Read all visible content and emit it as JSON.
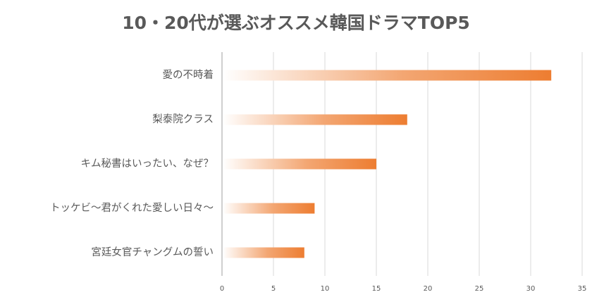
{
  "chart_data": {
    "type": "bar",
    "orientation": "horizontal",
    "title": "10・20代が選ぶオススメ韓国ドラマTOP5",
    "categories": [
      "愛の不時着",
      "梨泰院クラス",
      "キム秘書はいったい、なぜ？",
      "トッケビ〜君がくれた愛しい日々〜",
      "宮廷女官チャングムの誓い"
    ],
    "values": [
      32,
      18,
      15,
      9,
      8
    ],
    "xlim": [
      0,
      35
    ],
    "xticks": [
      0,
      5,
      10,
      15,
      20,
      25,
      30,
      35
    ],
    "xlabel": "",
    "ylabel": "",
    "grid": "vertical",
    "legend": "none",
    "colors": {
      "bar_start": "#ffffff",
      "bar_end": "#ed7d31",
      "grid": "#d9d9d9",
      "axis": "#bfbfbf",
      "text": "#595959"
    }
  }
}
